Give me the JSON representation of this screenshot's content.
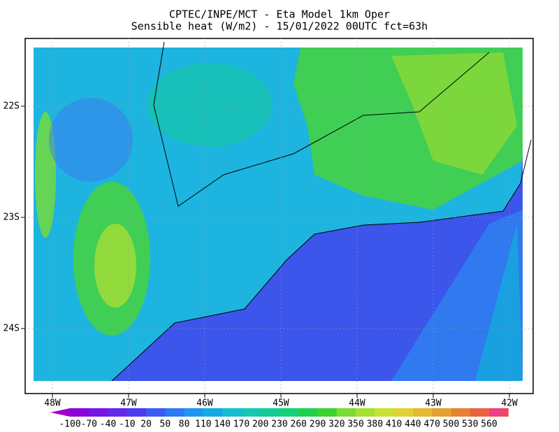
{
  "header": {
    "line1": "CPTEC/INPE/MCT -  Eta Model 1km Oper",
    "line2": "Sensible heat (W/m2) - 15/01/2022 00UTC fct=63h"
  },
  "axes": {
    "lat_labels": [
      "22S",
      "23S",
      "24S"
    ],
    "lon_labels": [
      "48W",
      "47W",
      "46W",
      "45W",
      "44W",
      "43W",
      "42W"
    ]
  },
  "colorbar": {
    "levels": [
      -100,
      -70,
      -40,
      -10,
      20,
      50,
      80,
      110,
      140,
      170,
      200,
      230,
      260,
      290,
      320,
      350,
      380,
      410,
      440,
      470,
      500,
      530,
      560
    ],
    "colors": [
      "#a000c8",
      "#8c00dc",
      "#7814e6",
      "#6428eb",
      "#4b3cf0",
      "#3c5af5",
      "#2d78f5",
      "#1e96f0",
      "#14aae6",
      "#14bed2",
      "#14c8b4",
      "#14cd96",
      "#14d278",
      "#1ed250",
      "#3cd232",
      "#78dc32",
      "#a5e132",
      "#c8e132",
      "#e1d232",
      "#e6b932",
      "#e6a02d",
      "#e68232",
      "#eb6441",
      "#f0465a",
      "#f03c8c"
    ]
  }
}
